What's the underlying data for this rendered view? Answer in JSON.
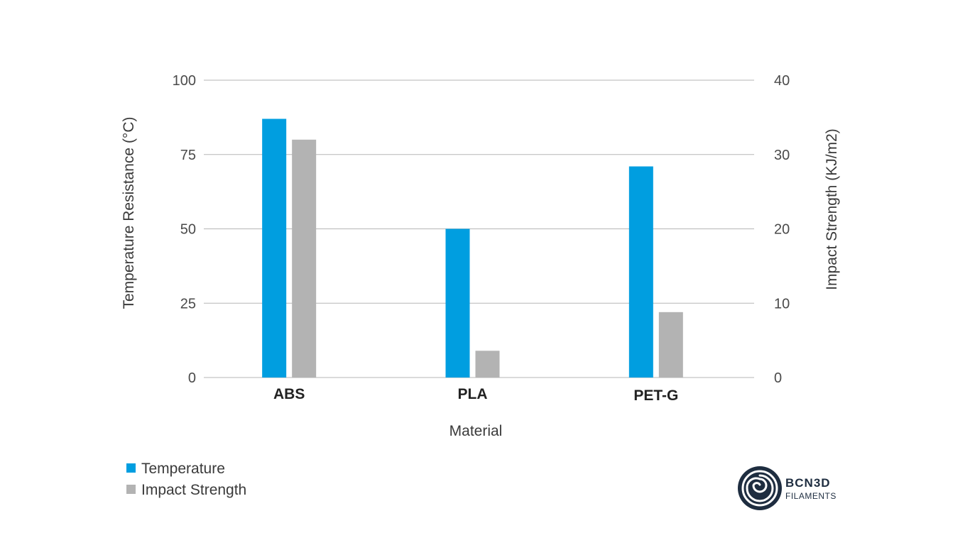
{
  "chart_data": {
    "type": "bar",
    "categories": [
      "ABS",
      "PLA",
      "PET-G"
    ],
    "series": [
      {
        "name": "Temperature",
        "axis": "left",
        "color": "#009ee0",
        "values": [
          87,
          50,
          71
        ]
      },
      {
        "name": "Impact  Strength",
        "axis": "right",
        "color": "#b3b3b3",
        "values": [
          32,
          3.6,
          8.8
        ]
      }
    ],
    "xlabel": "Material",
    "ylabel_left": "Temperature Resistance (°C)",
    "ylabel_right": "Impact Strength (KJ/m2)",
    "ylim_left": [
      0,
      100
    ],
    "ylim_right": [
      0,
      40
    ],
    "yticks_left": [
      "100",
      "75",
      "50",
      "25",
      "0"
    ],
    "yticks_right": [
      "40",
      "30",
      "20",
      "10",
      "0"
    ],
    "grid": true,
    "legend_position": "bottom-left"
  },
  "logo": {
    "title": "BCN3D",
    "subtitle": "FILAMENTS",
    "color": "#1e2d40"
  }
}
